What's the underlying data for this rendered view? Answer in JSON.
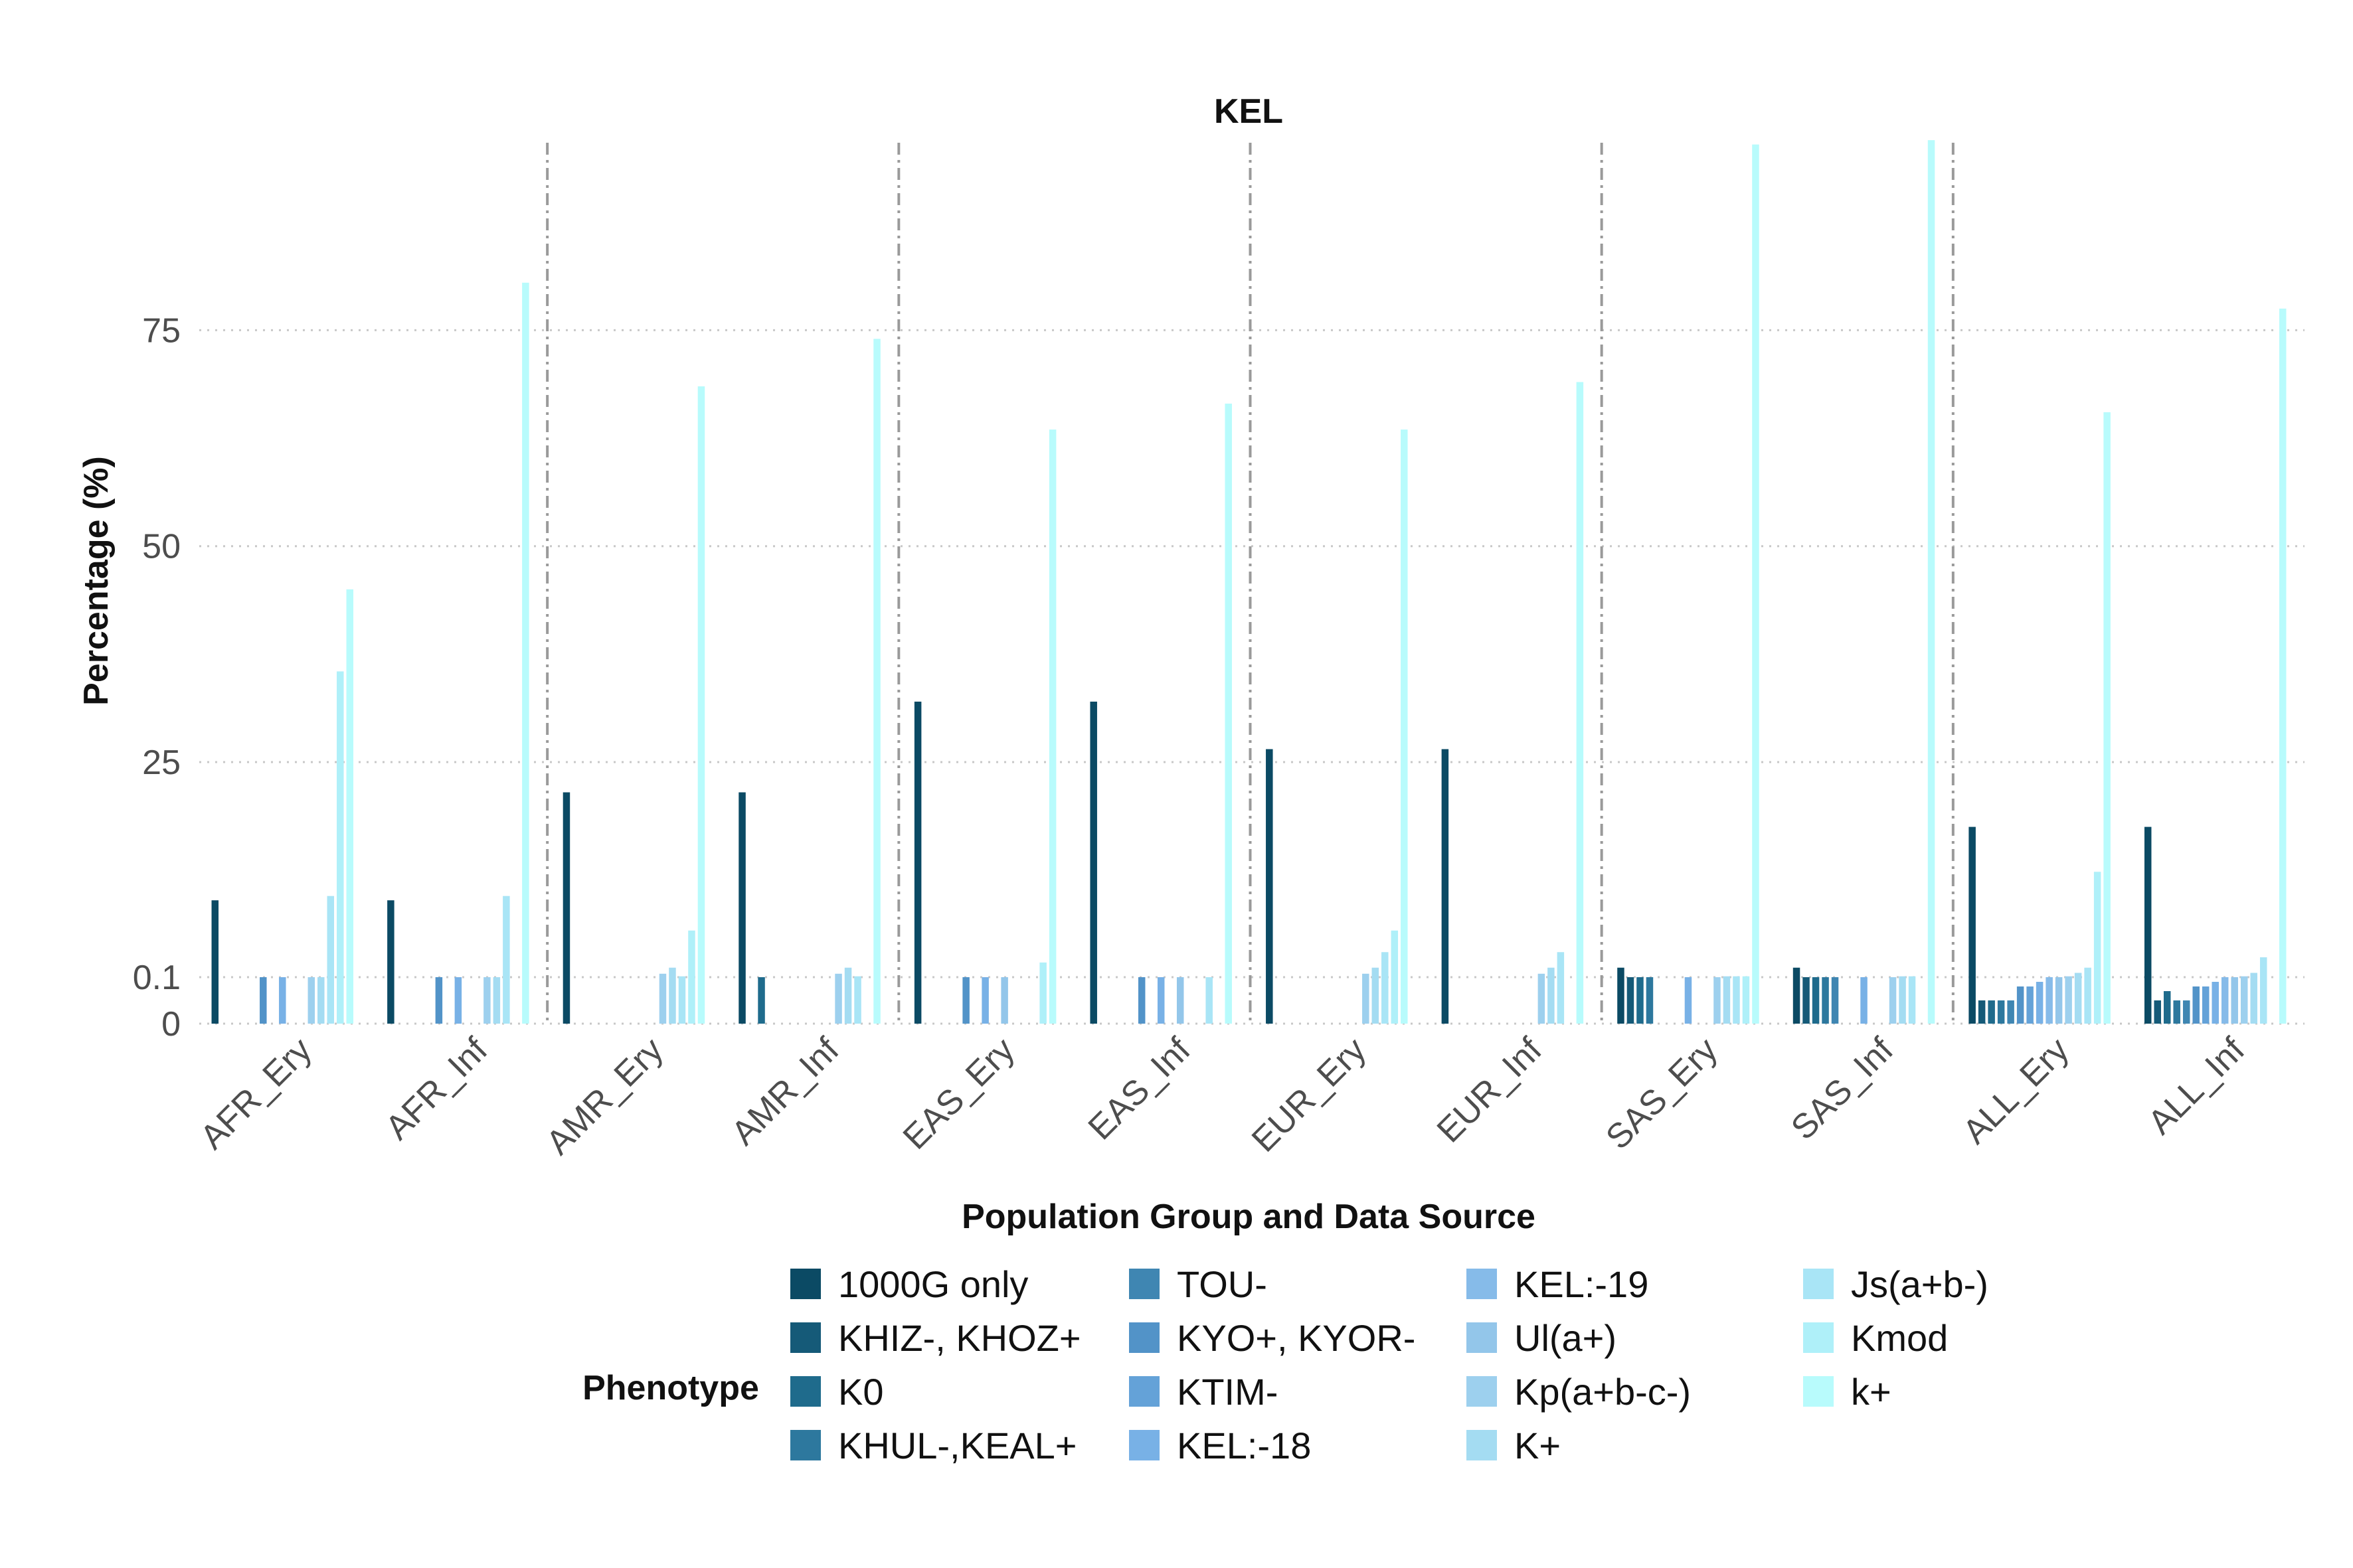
{
  "chart_data": {
    "type": "bar",
    "title": "KEL",
    "xlabel": "Population Group and Data Source",
    "ylabel": "Percentage (%)",
    "y_scale": "piecewise: 0 to 0.1 stretched, 0.1 and above linear",
    "y_ticks": [
      0,
      0.1,
      25,
      50,
      75
    ],
    "y_tick_labels": [
      "0",
      "0.1",
      "25",
      "50",
      "75"
    ],
    "ylim": [
      0,
      98
    ],
    "grid": true,
    "legend_position": "bottom",
    "legend_title": "Phenotype",
    "categories": [
      "AFR_Ery",
      "AFR_Inf",
      "AMR_Ery",
      "AMR_Inf",
      "EAS_Ery",
      "EAS_Inf",
      "EUR_Ery",
      "EUR_Inf",
      "SAS_Ery",
      "SAS_Inf",
      "ALL_Ery",
      "ALL_Inf"
    ],
    "series": [
      {
        "name": "1000G only",
        "color": "#0b4a64",
        "values": [
          9,
          9,
          21.5,
          21.5,
          32,
          32,
          26.5,
          26.5,
          1.2,
          1.2,
          17.5,
          17.5
        ]
      },
      {
        "name": "KHIZ-, KHOZ+",
        "color": "#155a78",
        "values": [
          0,
          0,
          0,
          0,
          0,
          0,
          0,
          0,
          0.1,
          0.1,
          0.05,
          0.05
        ]
      },
      {
        "name": "K0",
        "color": "#1f6b8c",
        "values": [
          0,
          0,
          0,
          0.1,
          0,
          0,
          0,
          0,
          0.1,
          0.1,
          0.05,
          0.07
        ]
      },
      {
        "name": "KHUL-,KEAL+",
        "color": "#2d789e",
        "values": [
          0,
          0,
          0,
          0,
          0,
          0,
          0,
          0,
          0.1,
          0.1,
          0.05,
          0.05
        ]
      },
      {
        "name": "TOU-",
        "color": "#3f86b2",
        "values": [
          0,
          0,
          0,
          0,
          0,
          0,
          0,
          0,
          0,
          0.1,
          0.05,
          0.05
        ]
      },
      {
        "name": "KYO+, KYOR-",
        "color": "#5293c8",
        "values": [
          0.1,
          0.1,
          0,
          0,
          0.1,
          0.1,
          0,
          0,
          0,
          0,
          0.08,
          0.08
        ]
      },
      {
        "name": "KTIM-",
        "color": "#64a2d8",
        "values": [
          0,
          0,
          0,
          0,
          0,
          0,
          0,
          0,
          0,
          0,
          0.08,
          0.08
        ]
      },
      {
        "name": "KEL:-18",
        "color": "#78b1e6",
        "values": [
          0.1,
          0.1,
          0,
          0,
          0.1,
          0.1,
          0,
          0,
          0.1,
          0.1,
          0.09,
          0.09
        ]
      },
      {
        "name": "KEL:-19",
        "color": "#86bbe9",
        "values": [
          0,
          0,
          0,
          0,
          0,
          0,
          0,
          0,
          0,
          0,
          0.1,
          0.1
        ]
      },
      {
        "name": "Ul(a+)",
        "color": "#93c6ea",
        "values": [
          0,
          0,
          0,
          0,
          0.1,
          0.1,
          0,
          0,
          0,
          0,
          0.1,
          0.1
        ]
      },
      {
        "name": "Kp(a+b-c-)",
        "color": "#9dd0ee",
        "values": [
          0.1,
          0.1,
          0.5,
          0.5,
          0,
          0,
          0.5,
          0.5,
          0.1,
          0.1,
          0.2,
          0.2
        ]
      },
      {
        "name": "K+",
        "color": "#a4dcf2",
        "values": [
          0.1,
          0.1,
          1.2,
          1.2,
          0,
          0,
          1.2,
          1.2,
          0.2,
          0.2,
          0.6,
          0.6
        ]
      },
      {
        "name": "Js(a+b-)",
        "color": "#a9e5f6",
        "values": [
          9.5,
          9.5,
          0.2,
          0.2,
          0,
          0.1,
          3,
          3,
          0.2,
          0.2,
          1.2,
          2.4
        ]
      },
      {
        "name": "Kmod",
        "color": "#aff0f9",
        "values": [
          35.5,
          0,
          5.5,
          0,
          1.8,
          0,
          5.5,
          0,
          0.2,
          0,
          12.3,
          0
        ]
      },
      {
        "name": "k+",
        "color": "#b8fbfc",
        "values": [
          45,
          80.5,
          68.5,
          74,
          63.5,
          66.5,
          63.5,
          69,
          96.5,
          97,
          65.5,
          77.5
        ]
      }
    ]
  }
}
